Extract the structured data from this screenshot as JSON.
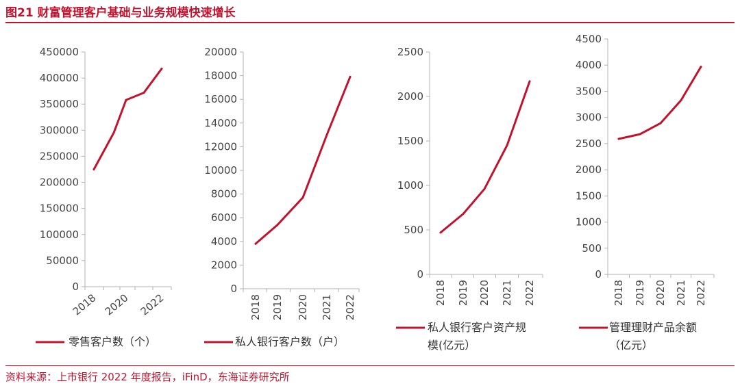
{
  "header": {
    "title": "图21 财富管理客户基础与业务规模快速增长",
    "source": "资料来源：上市银行 2022 年度报告，iFinD，东海证券研究所"
  },
  "colors": {
    "accent": "#c0142e",
    "axis": "#b3b3b3"
  },
  "chart_data": [
    {
      "type": "line",
      "title": "",
      "x": [
        2018,
        2019,
        2020,
        2021,
        2022
      ],
      "xtick_labels": [
        "2018",
        "2020",
        "2022"
      ],
      "series": [
        {
          "name": "零售客户数（个）",
          "values": [
            225000,
            295000,
            358000,
            372000,
            418000
          ]
        }
      ],
      "ylim": [
        0,
        450000
      ],
      "yticks": [
        0,
        50000,
        100000,
        150000,
        200000,
        250000,
        300000,
        350000,
        400000,
        450000
      ],
      "legend_lines": [
        "零售客户数（个）"
      ]
    },
    {
      "type": "line",
      "title": "",
      "x": [
        2018,
        2019,
        2020,
        2021,
        2022
      ],
      "xtick_labels": [
        "2018",
        "2019",
        "2020",
        "2021",
        "2022"
      ],
      "series": [
        {
          "name": "私人银行客户数（户）",
          "values": [
            3800,
            5400,
            7700,
            13000,
            17900
          ]
        }
      ],
      "ylim": [
        0,
        20000
      ],
      "yticks": [
        0,
        2000,
        4000,
        6000,
        8000,
        10000,
        12000,
        14000,
        16000,
        18000,
        20000
      ],
      "legend_lines": [
        "私人银行客户数（户）"
      ]
    },
    {
      "type": "line",
      "title": "",
      "x": [
        2018,
        2019,
        2020,
        2021,
        2022
      ],
      "xtick_labels": [
        "2018",
        "2019",
        "2020",
        "2021",
        "2022"
      ],
      "series": [
        {
          "name": "私人银行客户资产规模(亿元）",
          "values": [
            470,
            680,
            960,
            1450,
            2170
          ]
        }
      ],
      "ylim": [
        0,
        2500
      ],
      "yticks": [
        0,
        500,
        1000,
        1500,
        2000,
        2500
      ],
      "legend_lines": [
        "私人银行客户资产规",
        "模(亿元）"
      ]
    },
    {
      "type": "line",
      "title": "",
      "x": [
        2018,
        2019,
        2020,
        2021,
        2022
      ],
      "xtick_labels": [
        "2018",
        "2019",
        "2020",
        "2021",
        "2022"
      ],
      "series": [
        {
          "name": "管理理财产品余额（亿元）",
          "values": [
            2590,
            2680,
            2890,
            3330,
            3970
          ]
        }
      ],
      "ylim": [
        0,
        4500
      ],
      "yticks": [
        0,
        500,
        1000,
        1500,
        2000,
        2500,
        3000,
        3500,
        4000,
        4500
      ],
      "legend_lines": [
        "管理理财产品余额",
        "（亿元）"
      ]
    }
  ]
}
